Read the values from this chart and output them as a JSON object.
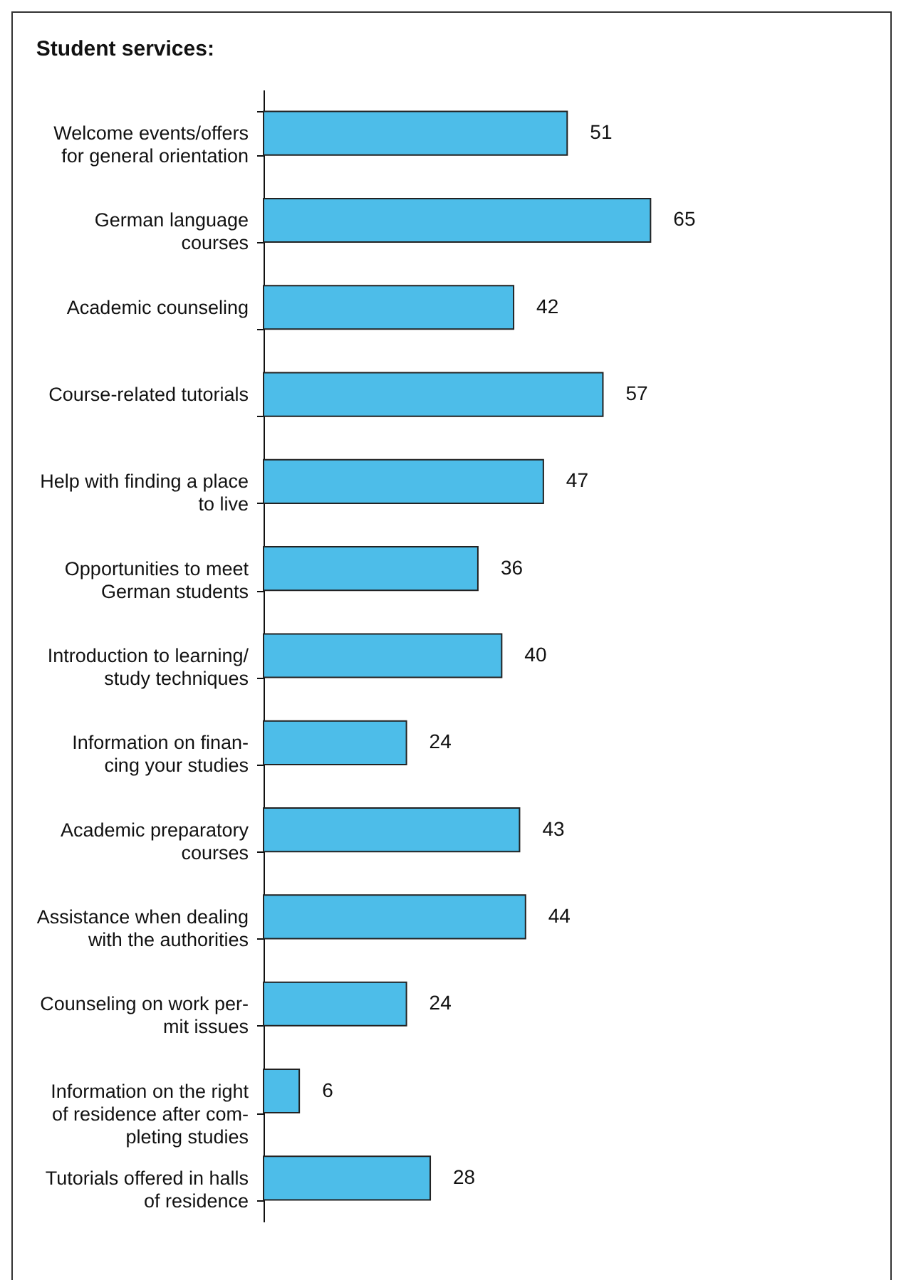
{
  "chart_data": {
    "type": "bar",
    "orientation": "horizontal",
    "title": "Student services:",
    "data_labels": true,
    "color": "#4dbde9",
    "categories": [
      "Welcome events/offers\nfor general orientation",
      "German language\ncourses",
      "Academic counseling",
      "Course-related tutorials",
      "Help with finding a place\nto live",
      "Opportunities to meet\nGerman students",
      "Introduction to learning/\nstudy techniques",
      "Information on finan-\ncing your studies",
      "Academic preparatory\ncourses",
      "Assistance when dealing\nwith the authorities",
      "Counseling on work per-\nmit issues",
      "Information on the right\nof residence after com-\npleting studies",
      "Tutorials offered in halls\nof residence"
    ],
    "values": [
      51,
      65,
      42,
      57,
      47,
      36,
      40,
      24,
      43,
      44,
      24,
      6,
      28
    ]
  }
}
